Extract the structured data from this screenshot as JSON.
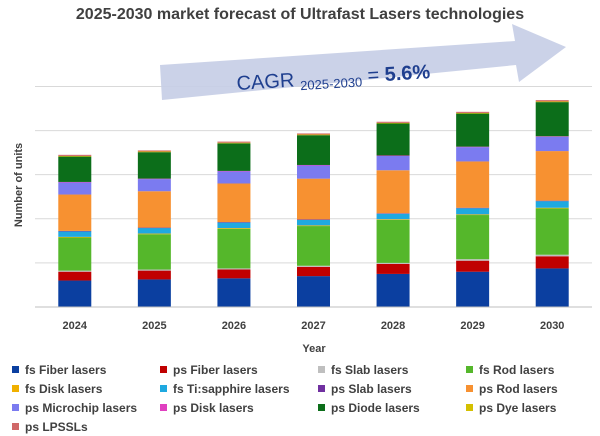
{
  "chart_data": {
    "type": "bar",
    "stacked": true,
    "title": "2025-2030 market forecast of Ultrafast Lasers technologies",
    "xlabel": "Year",
    "ylabel": "Number of units",
    "ylim": [
      0,
      11.2
    ],
    "gridlines": [
      2,
      4,
      6,
      8,
      10
    ],
    "categories": [
      "2024",
      "2025",
      "2026",
      "2027",
      "2028",
      "2029",
      "2030"
    ],
    "annotation": {
      "prefix": "CAGR ",
      "subscript": "2025-2030",
      "equals": " = ",
      "value": "5.6%"
    },
    "series": [
      {
        "name": "fs Fiber lasers",
        "color": "#0b3fa0",
        "values": [
          1.2,
          1.25,
          1.3,
          1.4,
          1.5,
          1.6,
          1.75
        ]
      },
      {
        "name": "ps Fiber lasers",
        "color": "#c00000",
        "values": [
          0.4,
          0.4,
          0.4,
          0.42,
          0.45,
          0.5,
          0.55
        ]
      },
      {
        "name": "fs Slab lasers",
        "color": "#bfbfbf",
        "values": [
          0.05,
          0.05,
          0.05,
          0.05,
          0.05,
          0.07,
          0.07
        ]
      },
      {
        "name": "fs Rod lasers",
        "color": "#55b72b",
        "values": [
          1.5,
          1.6,
          1.8,
          1.8,
          1.95,
          2.0,
          2.1
        ]
      },
      {
        "name": "fs Disk lasers",
        "color": "#f0b000",
        "values": [
          0.03,
          0.03,
          0.03,
          0.03,
          0.03,
          0.03,
          0.03
        ]
      },
      {
        "name": "fs Ti:sapphire lasers",
        "color": "#1fa9e0",
        "values": [
          0.25,
          0.25,
          0.25,
          0.25,
          0.25,
          0.28,
          0.3
        ]
      },
      {
        "name": "ps Slab lasers",
        "color": "#7030a0",
        "values": [
          0.02,
          0.02,
          0.02,
          0.02,
          0.02,
          0.02,
          0.02
        ]
      },
      {
        "name": "ps Rod lasers",
        "color": "#f79131",
        "values": [
          1.65,
          1.65,
          1.75,
          1.85,
          1.95,
          2.1,
          2.25
        ]
      },
      {
        "name": "ps Microchip lasers",
        "color": "#7b7bf0",
        "values": [
          0.55,
          0.55,
          0.55,
          0.6,
          0.65,
          0.65,
          0.65
        ]
      },
      {
        "name": "ps Disk lasers",
        "color": "#e040c0",
        "values": [
          0.02,
          0.02,
          0.02,
          0.02,
          0.02,
          0.02,
          0.02
        ]
      },
      {
        "name": "ps Diode lasers",
        "color": "#0c6e1a",
        "values": [
          1.15,
          1.2,
          1.25,
          1.35,
          1.45,
          1.5,
          1.55
        ]
      },
      {
        "name": "ps Dye lasers",
        "color": "#d4c000",
        "values": [
          0.03,
          0.03,
          0.03,
          0.03,
          0.03,
          0.03,
          0.03
        ]
      },
      {
        "name": "ps LPSSLs",
        "color": "#d06868",
        "values": [
          0.05,
          0.05,
          0.05,
          0.05,
          0.05,
          0.05,
          0.06
        ]
      }
    ]
  }
}
